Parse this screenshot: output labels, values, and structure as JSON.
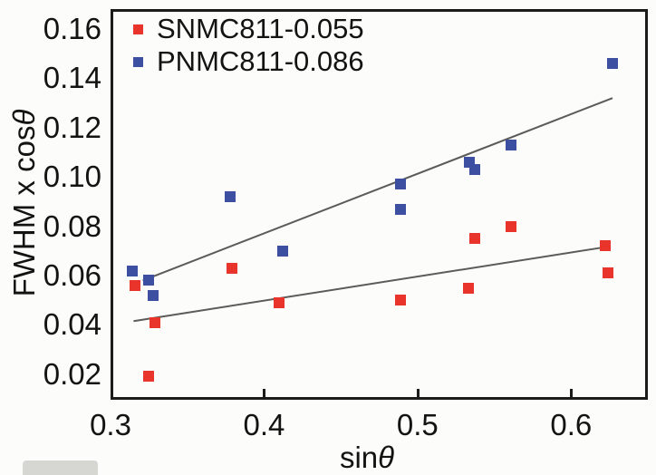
{
  "figure": {
    "bg_color": "#fcfcfa",
    "frame_color": "#1b1b1b",
    "text_color": "#131313"
  },
  "chart_data": {
    "type": "scatter",
    "title": "",
    "xlabel": "sinθ",
    "ylabel": "FWHM x cosθ",
    "axis_labels": {
      "x_prefix": "sin",
      "x_symbol": "θ",
      "y_prefix": "FWHM x cos",
      "y_symbol": "θ"
    },
    "xlim": [
      0.3,
      0.65
    ],
    "ylim": [
      0.0096,
      0.1681
    ],
    "grid": false,
    "legend_position": "top-left",
    "x_ticks": [
      {
        "value": 0.3,
        "label": "0.3"
      },
      {
        "value": 0.4,
        "label": "0.4"
      },
      {
        "value": 0.5,
        "label": "0.5"
      },
      {
        "value": 0.6,
        "label": "0.6"
      }
    ],
    "y_ticks": [
      {
        "value": 0.16,
        "label": "0.16"
      },
      {
        "value": 0.14,
        "label": "0.14"
      },
      {
        "value": 0.12,
        "label": "0.12"
      },
      {
        "value": 0.1,
        "label": "0.10"
      },
      {
        "value": 0.08,
        "label": "0.08"
      },
      {
        "value": 0.06,
        "label": "0.06"
      },
      {
        "value": 0.04,
        "label": "0.04"
      },
      {
        "value": 0.02,
        "label": "0.02"
      }
    ],
    "trend_line_color": "#5c5b58",
    "series": [
      {
        "name": "SNMC811-0.055",
        "color": "#e9342c",
        "marker": "square",
        "points": [
          [
            0.316,
            0.056
          ],
          [
            0.329,
            0.041
          ],
          [
            0.325,
            0.019
          ],
          [
            0.379,
            0.063
          ],
          [
            0.41,
            0.049
          ],
          [
            0.489,
            0.05
          ],
          [
            0.533,
            0.055
          ],
          [
            0.537,
            0.075
          ],
          [
            0.561,
            0.08
          ],
          [
            0.622,
            0.072
          ],
          [
            0.624,
            0.061
          ]
        ],
        "trend_line": {
          "x1": 0.315,
          "y1": 0.0415,
          "x2": 0.622,
          "y2": 0.0715
        }
      },
      {
        "name": "PNMC811-0.086",
        "color": "#3c4fa0",
        "marker": "square",
        "points": [
          [
            0.314,
            0.062
          ],
          [
            0.325,
            0.058
          ],
          [
            0.328,
            0.052
          ],
          [
            0.378,
            0.092
          ],
          [
            0.412,
            0.07
          ],
          [
            0.489,
            0.097
          ],
          [
            0.489,
            0.087
          ],
          [
            0.534,
            0.106
          ],
          [
            0.537,
            0.103
          ],
          [
            0.561,
            0.113
          ],
          [
            0.627,
            0.146
          ]
        ],
        "trend_line": {
          "x1": 0.321,
          "y1": 0.058,
          "x2": 0.627,
          "y2": 0.132
        }
      }
    ]
  }
}
